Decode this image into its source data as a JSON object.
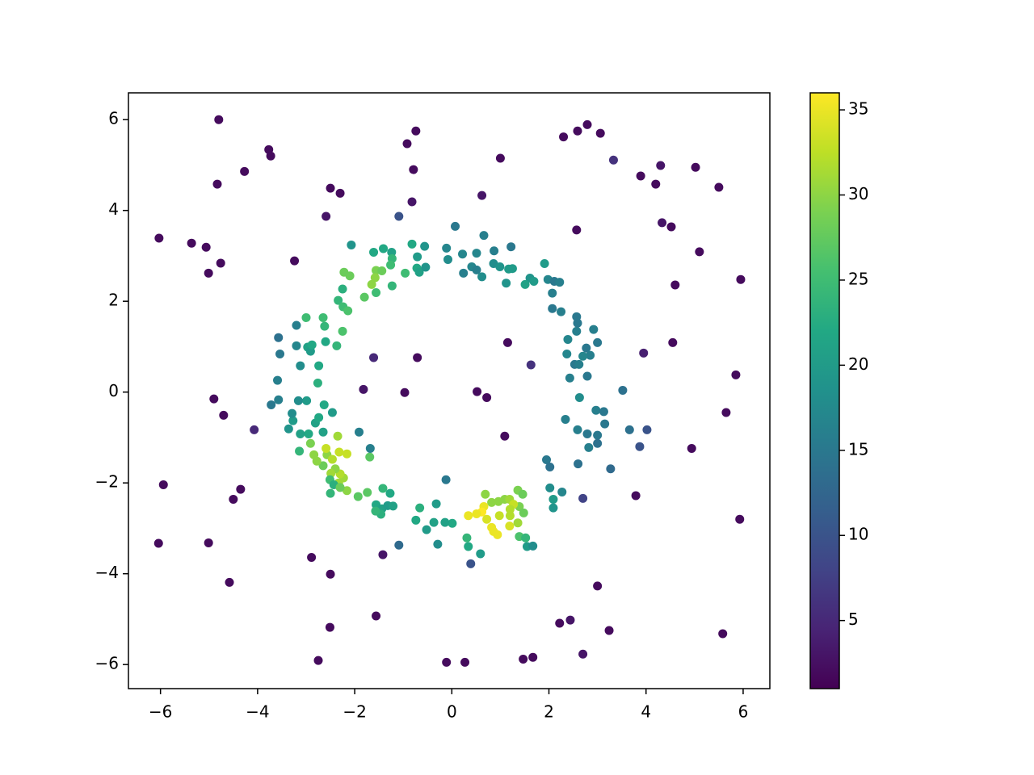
{
  "chart_data": {
    "type": "scatter",
    "xlim": [
      -6.66,
      6.55
    ],
    "ylim": [
      -6.53,
      6.59
    ],
    "xticks": [
      {
        "value": -6,
        "label": "−6"
      },
      {
        "value": -4,
        "label": "−4"
      },
      {
        "value": -2,
        "label": "−2"
      },
      0,
      2,
      4,
      6
    ],
    "yticks": [
      {
        "value": -6,
        "label": "−6"
      },
      {
        "value": -4,
        "label": "−4"
      },
      {
        "value": -2,
        "label": "−2"
      },
      0,
      2,
      4,
      6
    ],
    "colormap": "viridis",
    "clim": [
      1,
      36
    ],
    "cticks": [
      5,
      10,
      15,
      20,
      25,
      30,
      35
    ],
    "x": [
      -4.8,
      -3.77,
      -3.73,
      -4.27,
      -4.83,
      -2.5,
      -2.3,
      -2.59,
      -6.03,
      -5.36,
      -5.06,
      -4.76,
      -5.01,
      -3.24,
      -0.74,
      -0.92,
      -0.79,
      -0.82,
      1.0,
      0.62,
      2.3,
      2.59,
      2.79,
      3.06,
      3.33,
      3.89,
      4.2,
      4.3,
      5.02,
      5.5,
      4.33,
      4.52,
      5.1,
      2.57,
      4.6,
      5.95,
      3.95,
      4.55,
      5.85,
      5.65,
      4.94,
      3.79,
      5.93,
      3.0,
      3.24,
      2.44,
      2.22,
      2.7,
      1.67,
      1.47,
      0.27,
      -0.11,
      5.58,
      -2.75,
      -2.51,
      -1.56,
      -2.5,
      -2.89,
      -1.42,
      -4.58,
      -5.01,
      -6.04,
      -5.94,
      -4.35,
      -4.5,
      -4.9,
      -4.7,
      -4.07,
      -1.82,
      -1.61,
      -0.71,
      -0.97,
      0.52,
      0.72,
      1.09,
      1.15,
      1.63,
      2.7,
      0.39,
      -1.09,
      -1.09,
      0.07,
      3.87,
      4.02,
      -2.07,
      -1.61,
      -1.41,
      -1.24,
      -1.23,
      -1.26,
      -0.82,
      -0.56,
      -0.71,
      -0.72,
      -0.67,
      -0.54,
      -0.96,
      -1.23,
      -1.56,
      -1.44,
      -1.58,
      -1.65,
      -1.56,
      -1.8,
      -2.22,
      -2.1,
      -2.25,
      -2.34,
      -2.24,
      -2.14,
      -2.25,
      -2.37,
      -0.11,
      -0.08,
      0.22,
      0.51,
      0.66,
      0.87,
      0.41,
      0.51,
      0.24,
      0.62,
      0.86,
      0.99,
      1.22,
      1.17,
      1.25,
      1.12,
      1.61,
      1.51,
      1.69,
      1.91,
      1.98,
      2.11,
      2.22,
      2.07,
      2.07,
      2.25,
      2.57,
      2.39,
      2.57,
      2.59,
      2.92,
      3.0,
      2.77,
      2.85,
      2.7,
      2.37,
      2.53,
      2.62,
      2.43,
      2.79,
      3.52,
      2.63,
      2.97,
      3.13,
      3.15,
      2.34,
      2.59,
      2.79,
      3.0,
      3.0,
      2.82,
      3.66,
      3.27,
      2.6,
      1.95,
      2.02,
      2.02,
      2.27,
      2.09,
      2.09,
      0.69,
      0.82,
      0.96,
      1.09,
      1.19,
      1.36,
      1.46,
      1.39,
      1.48,
      1.27,
      1.2,
      1.2,
      0.98,
      1.19,
      0.82,
      0.86,
      0.94,
      0.66,
      0.62,
      0.51,
      0.34,
      0.72,
      1.36,
      1.39,
      1.52,
      1.55,
      1.67,
      0.59,
      0.34,
      0.31,
      -0.12,
      0.01,
      -0.14,
      -0.37,
      -0.32,
      -0.52,
      -0.29,
      -0.74,
      -0.66,
      -1.27,
      -1.42,
      -1.56,
      -1.44,
      -1.32,
      -1.21,
      -1.46,
      -1.57,
      -1.74,
      -1.93,
      -2.16,
      -2.33,
      -2.23,
      -2.3,
      -2.4,
      -2.65,
      -2.57,
      -2.46,
      -2.32,
      -2.16,
      -2.35,
      -2.59,
      -2.84,
      -2.91,
      -2.78,
      -2.49,
      -2.51,
      -2.43,
      -2.5,
      -2.3,
      -1.69,
      -1.68,
      -1.91,
      -2.65,
      -2.95,
      -3.12,
      -3.27,
      -3.36,
      -3.14,
      -2.81,
      -2.74,
      -2.46,
      -2.63,
      -2.99,
      -3.16,
      -3.57,
      -3.72,
      -3.29,
      -2.76,
      -3.59,
      -2.74,
      -3.12,
      -3.2,
      -2.97,
      -2.91,
      -2.88,
      -3.54,
      -3.57,
      -3.2,
      -3.0,
      -2.65,
      -2.62,
      -2.6
    ],
    "values": [
      6.0,
      5.34,
      5.2,
      4.86,
      4.58,
      4.49,
      4.38,
      3.87,
      3.39,
      3.28,
      3.19,
      2.84,
      2.62,
      2.89,
      5.75,
      5.47,
      4.9,
      4.19,
      5.15,
      4.33,
      5.62,
      5.75,
      5.89,
      5.7,
      5.11,
      4.76,
      4.58,
      4.99,
      4.95,
      4.51,
      3.73,
      3.64,
      3.09,
      3.57,
      2.36,
      2.48,
      0.86,
      1.09,
      0.38,
      -0.45,
      -1.24,
      -2.28,
      -2.8,
      -4.27,
      -5.25,
      -5.02,
      -5.09,
      -5.77,
      -5.84,
      -5.88,
      -5.95,
      -5.95,
      -5.32,
      -5.91,
      -5.18,
      -4.93,
      -4.01,
      -3.64,
      -3.58,
      -4.19,
      -3.32,
      -3.33,
      -2.04,
      -2.14,
      -2.36,
      -0.15,
      -0.51,
      -0.83,
      0.06,
      0.76,
      0.76,
      -0.01,
      0.01,
      -0.12,
      -0.97,
      1.09,
      0.6,
      -2.34,
      -3.78,
      -3.37,
      3.87,
      3.65,
      -1.2,
      -0.83,
      3.24,
      3.08,
      3.16,
      3.08,
      2.94,
      2.8,
      3.26,
      3.21,
      2.98,
      2.73,
      2.64,
      2.75,
      2.62,
      2.34,
      2.68,
      2.67,
      2.52,
      2.37,
      2.19,
      2.09,
      2.64,
      2.56,
      2.27,
      2.02,
      1.88,
      1.79,
      1.34,
      1.02,
      3.17,
      2.92,
      3.04,
      3.06,
      3.45,
      3.11,
      2.76,
      2.69,
      2.62,
      2.54,
      2.83,
      2.76,
      3.2,
      2.71,
      2.72,
      2.4,
      2.51,
      2.37,
      2.44,
      2.83,
      2.48,
      2.44,
      2.42,
      2.18,
      1.84,
      1.77,
      1.66,
      1.16,
      1.34,
      1.52,
      1.38,
      1.09,
      0.97,
      0.81,
      0.79,
      0.84,
      0.61,
      0.61,
      0.31,
      0.35,
      0.04,
      -0.12,
      -0.4,
      -0.43,
      -0.7,
      -0.6,
      -0.83,
      -0.92,
      -0.95,
      -1.13,
      -1.22,
      -0.83,
      -1.69,
      -1.58,
      -1.49,
      -1.65,
      -2.11,
      -2.2,
      -2.36,
      -2.55,
      -2.25,
      -2.43,
      -2.41,
      -2.36,
      -2.36,
      -2.16,
      -2.25,
      -2.52,
      -2.66,
      -2.47,
      -2.58,
      -2.72,
      -2.72,
      -2.95,
      -2.98,
      -3.07,
      -3.14,
      -2.52,
      -2.64,
      -2.68,
      -2.72,
      -2.8,
      -2.88,
      -3.18,
      -3.21,
      -3.4,
      -3.39,
      -3.56,
      -3.4,
      -3.21,
      -1.93,
      -2.89,
      -2.87,
      -2.87,
      -2.46,
      -3.03,
      -3.35,
      -2.82,
      -2.55,
      -2.23,
      -2.12,
      -2.48,
      -2.57,
      -2.5,
      -2.51,
      -2.69,
      -2.62,
      -2.21,
      -2.3,
      -2.17,
      -2.0,
      -1.89,
      -1.8,
      -1.69,
      -1.62,
      -1.38,
      -1.48,
      -1.32,
      -1.36,
      -0.97,
      -1.24,
      -1.38,
      -1.13,
      -1.52,
      -1.79,
      -1.93,
      -2.04,
      -2.23,
      -2.1,
      -1.43,
      -1.24,
      -0.88,
      -0.88,
      -0.92,
      -0.92,
      -0.63,
      -0.81,
      -1.3,
      -0.68,
      -0.56,
      -0.45,
      -0.28,
      -0.19,
      -0.19,
      -0.17,
      -0.28,
      -0.47,
      0.2,
      0.26,
      0.58,
      0.58,
      1.02,
      0.99,
      0.9,
      1.04,
      0.84,
      1.2,
      1.47,
      1.64,
      1.64,
      1.45,
      1.11
    ],
    "c": [
      2,
      2,
      2,
      2,
      2,
      2,
      2,
      3,
      2,
      2,
      2,
      2,
      2,
      2,
      2,
      2,
      2,
      3,
      2,
      3,
      2,
      2,
      2,
      2,
      6,
      2,
      2,
      3,
      2,
      2,
      3,
      2,
      2,
      2,
      2,
      2,
      4,
      2,
      2,
      2,
      2,
      2,
      2,
      2,
      2,
      3,
      2,
      3,
      2,
      2,
      2,
      2,
      2,
      2,
      2,
      2,
      2,
      2,
      3,
      2,
      2,
      2,
      2,
      2,
      2,
      2,
      2,
      5,
      3,
      5,
      2,
      2,
      2,
      2,
      2,
      2,
      6,
      8,
      10,
      13,
      10,
      15,
      10,
      10,
      19,
      22,
      22,
      21,
      24,
      25,
      22,
      19,
      20,
      22,
      21,
      19,
      25,
      24,
      29,
      28,
      30,
      30,
      25,
      27,
      28,
      28,
      23,
      24,
      25,
      26,
      26,
      24,
      17,
      18,
      17,
      17,
      16,
      16,
      17,
      16,
      16,
      18,
      18,
      19,
      15,
      20,
      20,
      19,
      19,
      21,
      20,
      20,
      17,
      15,
      16,
      16,
      15,
      16,
      15,
      17,
      16,
      15,
      16,
      15,
      15,
      16,
      17,
      17,
      15,
      16,
      16,
      15,
      14,
      18,
      16,
      15,
      15,
      16,
      16,
      15,
      15,
      14,
      16,
      14,
      13,
      14,
      15,
      14,
      18,
      17,
      20,
      19,
      30,
      30,
      30,
      30,
      31,
      29,
      28,
      29,
      28,
      33,
      32,
      32,
      33,
      34,
      35,
      35,
      35,
      35,
      36,
      35,
      35,
      34,
      31,
      26,
      24,
      20,
      18,
      20,
      22,
      24,
      15,
      22,
      21,
      21,
      20,
      20,
      18,
      22,
      23,
      22,
      24,
      22,
      21,
      20,
      21,
      23,
      24,
      27,
      27,
      30,
      31,
      31,
      32,
      30,
      28,
      30,
      32,
      33,
      33,
      31,
      33,
      30,
      29,
      30,
      31,
      25,
      23,
      24,
      28,
      27,
      16,
      16,
      21,
      22,
      21,
      20,
      19,
      24,
      21,
      22,
      20,
      22,
      20,
      18,
      16,
      15,
      18,
      23,
      16,
      22,
      18,
      17,
      21,
      20,
      22,
      15,
      14,
      16,
      25,
      25,
      24,
      22
    ]
  }
}
